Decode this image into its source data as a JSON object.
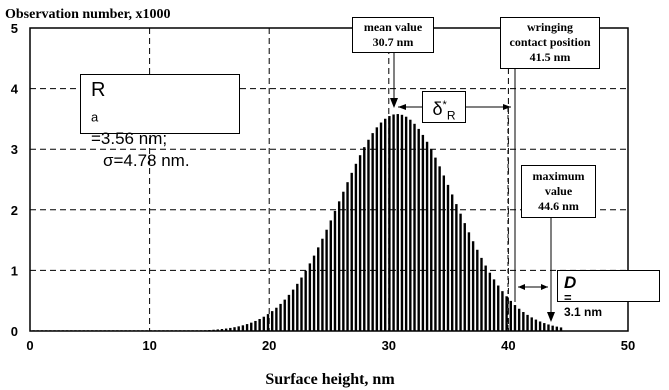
{
  "chart_data": {
    "type": "bar",
    "ylabel": "Observation number, x1000",
    "xlabel": "Surface height, nm",
    "xlim": [
      0,
      50
    ],
    "ylim": [
      0,
      5
    ],
    "xticks": [
      0,
      10,
      20,
      30,
      40,
      50
    ],
    "yticks": [
      0,
      1,
      2,
      3,
      4,
      5
    ],
    "grid": "dashed",
    "mean_nm": 30.7,
    "sigma_nm": 4.78,
    "peak_thousands": 3.58,
    "x_start_nm": 0.3,
    "x_end_nm": 44.6,
    "bin_width_nm": 0.35
  },
  "annotations": {
    "mean_line1": "mean value",
    "mean_line2": "30.7 nm",
    "ra_prefix": "R",
    "ra_sub": "a",
    "ra_text": "=3.56 nm;",
    "sigma_text": "σ=4.78 nm.",
    "delta_sym": "δ",
    "delta_sup": "*",
    "delta_sub": "R",
    "wring_line1": "wringing",
    "wring_line2": "contact position",
    "wring_line3": "41.5 nm",
    "max_line1": "maximum",
    "max_line2": "value",
    "max_line3": "44.6 nm",
    "d_sym": "D",
    "d_eq": "=",
    "d_val": "3.1 nm"
  }
}
